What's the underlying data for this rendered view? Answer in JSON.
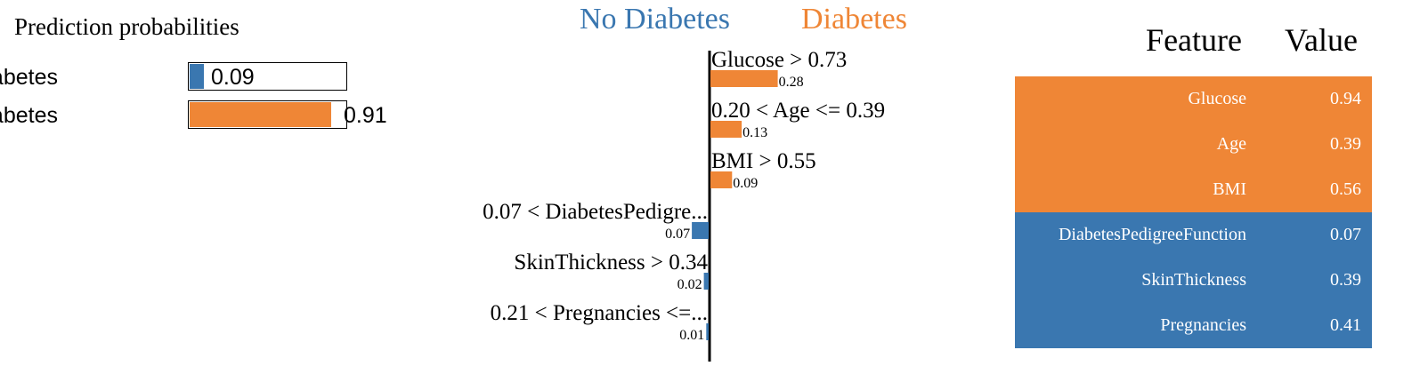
{
  "colors": {
    "negative": "#3a77b0",
    "positive": "#ef8636",
    "axis": "#000000"
  },
  "prediction_probabilities": {
    "title": "Prediction probabilities",
    "classes": [
      {
        "label": "No Diabetes",
        "value": 0.09,
        "value_label": "0.09",
        "color": "#3a77b0"
      },
      {
        "label": "Diabetes",
        "value": 0.91,
        "value_label": "0.91",
        "color": "#ef8636"
      }
    ]
  },
  "chart_data": {
    "type": "bar",
    "orientation": "horizontal",
    "negative_class": "No Diabetes",
    "positive_class": "Diabetes",
    "bars": [
      {
        "label": "Glucose > 0.73",
        "value": 0.28,
        "value_label": "0.28",
        "direction": "positive"
      },
      {
        "label": "0.20 < Age <= 0.39",
        "value": 0.13,
        "value_label": "0.13",
        "direction": "positive"
      },
      {
        "label": "BMI > 0.55",
        "value": 0.09,
        "value_label": "0.09",
        "direction": "positive"
      },
      {
        "label": "0.07 < DiabetesPedigre...",
        "value": 0.07,
        "value_label": "0.07",
        "direction": "negative"
      },
      {
        "label": "SkinThickness > 0.34",
        "value": 0.02,
        "value_label": "0.02",
        "direction": "negative"
      },
      {
        "label": "0.21 < Pregnancies <=...",
        "value": 0.01,
        "value_label": "0.01",
        "direction": "negative"
      }
    ]
  },
  "feature_table": {
    "header_feature": "Feature",
    "header_value": "Value",
    "rows": [
      {
        "feature": "Glucose",
        "value": "0.94",
        "class": "positive"
      },
      {
        "feature": "Age",
        "value": "0.39",
        "class": "positive"
      },
      {
        "feature": "BMI",
        "value": "0.56",
        "class": "positive"
      },
      {
        "feature": "DiabetesPedigreeFunction",
        "value": "0.07",
        "class": "negative"
      },
      {
        "feature": "SkinThickness",
        "value": "0.39",
        "class": "negative"
      },
      {
        "feature": "Pregnancies",
        "value": "0.41",
        "class": "negative"
      }
    ]
  }
}
